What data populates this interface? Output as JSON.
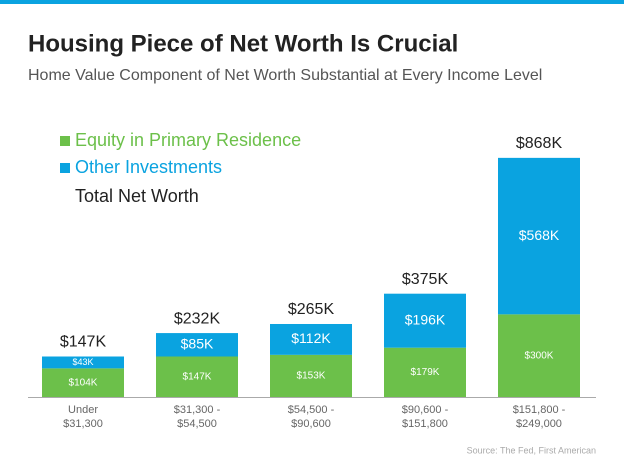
{
  "chart_data": {
    "type": "stacked_bar",
    "title": "Housing Piece of Net Worth Is Crucial",
    "subtitle": "Home Value Component of Net Worth Substantial at Every Income Level",
    "source": "Source: The Fed, First American",
    "categories": [
      [
        "Under",
        "$31,300"
      ],
      [
        "$31,300 -",
        "$54,500"
      ],
      [
        "$54,500 -",
        "$90,600"
      ],
      [
        "$90,600 -",
        "$151,800"
      ],
      [
        "$151,800 -",
        "$249,000"
      ]
    ],
    "series": [
      {
        "name": "Equity in Primary Residence",
        "color": "#6cc04a",
        "values": [
          104,
          147,
          153,
          179,
          300
        ],
        "value_labels": [
          "$104K",
          "$147K",
          "$153K",
          "$179K",
          "$300K"
        ]
      },
      {
        "name": "Other Investments",
        "color": "#0aa3e0",
        "values": [
          43,
          85,
          112,
          196,
          568
        ],
        "value_labels": [
          "$43K",
          "$85K",
          "$112K",
          "$196K",
          "$568K"
        ]
      }
    ],
    "totals": {
      "name": "Total Net Worth",
      "values": [
        147,
        232,
        265,
        375,
        868
      ],
      "value_labels": [
        "$147K",
        "$232K",
        "$265K",
        "$375K",
        "$868K"
      ]
    }
  }
}
